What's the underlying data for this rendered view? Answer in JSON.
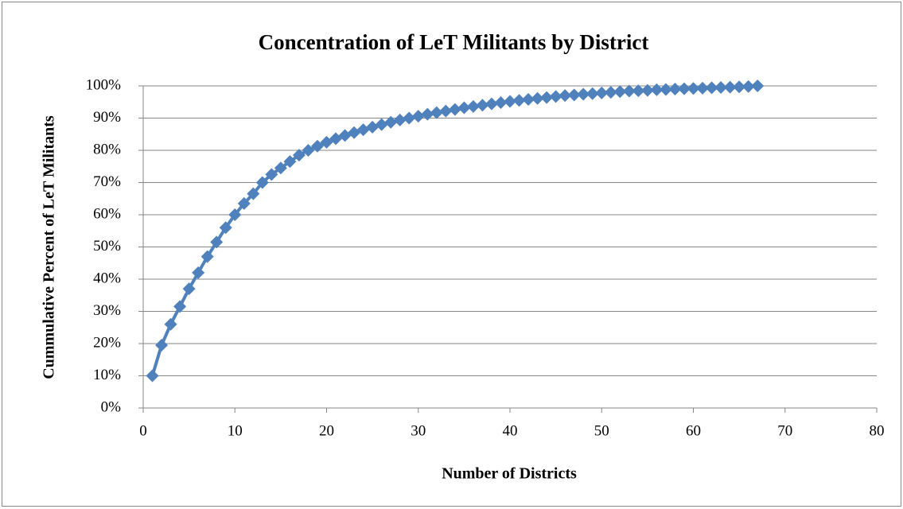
{
  "chart_data": {
    "type": "line",
    "title": "Concentration of LeT Militants by District",
    "x_label": "Number of Districts",
    "y_label": "Cummulative Percent of LeT Militants",
    "color": "#4f81bd",
    "x": [
      1,
      2,
      3,
      4,
      5,
      6,
      7,
      8,
      9,
      10,
      11,
      12,
      13,
      14,
      15,
      16,
      17,
      18,
      19,
      20,
      21,
      22,
      23,
      24,
      25,
      26,
      27,
      28,
      29,
      30,
      31,
      32,
      33,
      34,
      35,
      36,
      37,
      38,
      39,
      40,
      41,
      42,
      43,
      44,
      45,
      46,
      47,
      48,
      49,
      50,
      51,
      52,
      53,
      54,
      55,
      56,
      57,
      58,
      59,
      60,
      61,
      62,
      63,
      64,
      65,
      66,
      67
    ],
    "values": [
      10,
      19.5,
      26,
      31.5,
      37,
      42,
      47,
      51.5,
      56,
      60,
      63.5,
      66.5,
      70,
      72.5,
      74.5,
      76.5,
      78.5,
      80,
      81.3,
      82.5,
      83.6,
      84.6,
      85.5,
      86.4,
      87.2,
      88,
      88.7,
      89.4,
      90,
      90.6,
      91.2,
      91.7,
      92.2,
      92.7,
      93.2,
      93.6,
      94,
      94.4,
      94.8,
      95.2,
      95.5,
      95.8,
      96.1,
      96.4,
      96.7,
      97,
      97.2,
      97.4,
      97.6,
      97.8,
      98,
      98.2,
      98.4,
      98.5,
      98.6,
      98.8,
      98.9,
      99,
      99.1,
      99.2,
      99.3,
      99.4,
      99.5,
      99.6,
      99.7,
      99.8,
      100
    ],
    "xlim": [
      0,
      80
    ],
    "xticks": [
      0,
      10,
      20,
      30,
      40,
      50,
      60,
      70,
      80
    ],
    "ylim": [
      0,
      100
    ],
    "yticks": [
      {
        "value": 0,
        "label": "0%"
      },
      {
        "value": 10,
        "label": "10%"
      },
      {
        "value": 20,
        "label": "20%"
      },
      {
        "value": 30,
        "label": "30%"
      },
      {
        "value": 40,
        "label": "40%"
      },
      {
        "value": 50,
        "label": "50%"
      },
      {
        "value": 60,
        "label": "60%"
      },
      {
        "value": 70,
        "label": "70%"
      },
      {
        "value": 80,
        "label": "80%"
      },
      {
        "value": 90,
        "label": "90%"
      },
      {
        "value": 100,
        "label": "100%"
      }
    ],
    "grid": true
  }
}
